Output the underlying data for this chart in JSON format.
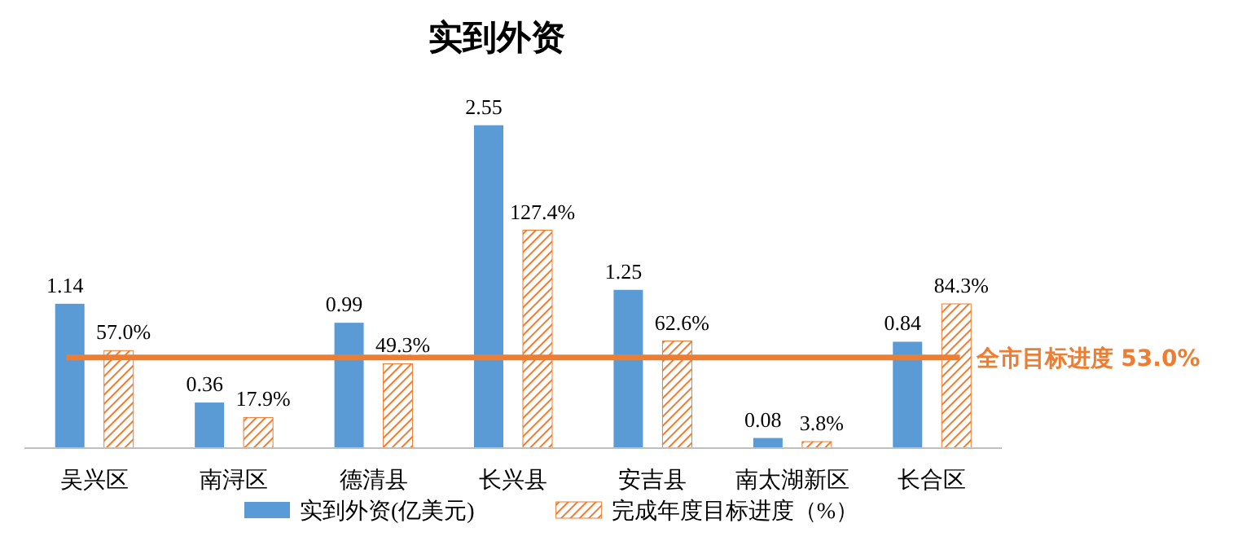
{
  "chart_data": {
    "type": "bar",
    "title": "实到外资",
    "categories": [
      "吴兴区",
      "南浔区",
      "德清县",
      "长兴县",
      "安吉县",
      "南太湖新区",
      "长合区"
    ],
    "series": [
      {
        "name": "实到外资(亿美元)",
        "color": "#5b9bd5",
        "values": [
          1.14,
          0.36,
          0.99,
          2.55,
          1.25,
          0.08,
          0.84
        ],
        "value_labels": [
          "1.14",
          "0.36",
          "0.99",
          "2.55",
          "1.25",
          "0.08",
          "0.84"
        ]
      },
      {
        "name": "完成年度目标进度（%）",
        "color": "#ed7d31",
        "axis": "y2",
        "values": [
          57.0,
          17.9,
          49.3,
          127.4,
          62.6,
          3.8,
          84.3
        ],
        "value_labels": [
          "57.0%",
          "17.9%",
          "49.3%",
          "127.4%",
          "62.6%",
          "3.8%",
          "84.3%"
        ]
      }
    ],
    "tick_labels": "x",
    "legend": "bottom",
    "ref_lines": [
      {
        "axis": "y2",
        "value": 53.0,
        "label": "全市目标进度 53.0%",
        "color": "#ed7d31"
      }
    ]
  }
}
